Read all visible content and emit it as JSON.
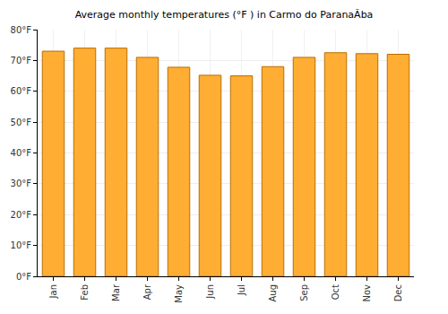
{
  "chart_data": {
    "type": "bar",
    "title": "Average monthly temperatures (°F ) in Carmo do ParanaÃ­ba",
    "categories": [
      "Jan",
      "Feb",
      "Mar",
      "Apr",
      "May",
      "Jun",
      "Jul",
      "Aug",
      "Sep",
      "Oct",
      "Nov",
      "Dec"
    ],
    "values": [
      73,
      74,
      74,
      71,
      67.8,
      65.2,
      65,
      68,
      71,
      72.5,
      72.2,
      72
    ],
    "color": "#ffad33",
    "ylim": [
      0,
      80
    ],
    "yticks": [
      {
        "value": 0,
        "label": "0°F"
      },
      {
        "value": 10,
        "label": "10°F"
      },
      {
        "value": 20,
        "label": "20°F"
      },
      {
        "value": 30,
        "label": "30°F"
      },
      {
        "value": 40,
        "label": "40°F"
      },
      {
        "value": 50,
        "label": "50°F"
      },
      {
        "value": 60,
        "label": "60°F"
      },
      {
        "value": 70,
        "label": "70°F"
      },
      {
        "value": 80,
        "label": "80°F"
      }
    ],
    "grid": true
  }
}
